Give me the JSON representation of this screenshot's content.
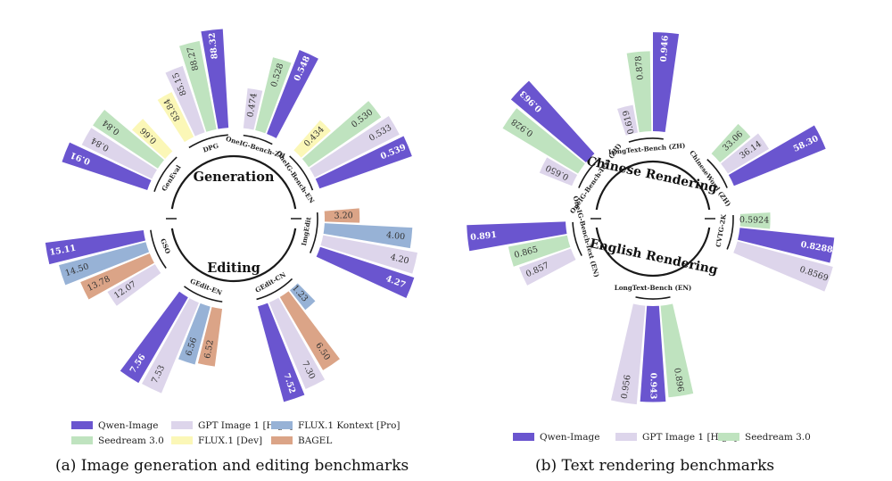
{
  "colors": {
    "Qwen-Image": "#6a55cf",
    "Seedream 3.0": "#bfe3bf",
    "GPT Image 1 [High]": "#ddd5eb",
    "FLUX.1 [Dev]": "#fbf7b7",
    "FLUX.1 Kontext [Pro]": "#97b2d6",
    "BAGEL": "#dba487",
    "frame": "#1a1a1a"
  },
  "captions": {
    "a": "(a) Image generation and editing benchmarks",
    "b": "(b) Text rendering benchmarks"
  },
  "chart_data": [
    {
      "type": "radial bar",
      "caption": "(a) Image generation and editing benchmarks",
      "hub_labels": [
        "Generation",
        "Editing"
      ],
      "legend": [
        "Qwen-Image",
        "GPT Image 1 [High]",
        "FLUX.1 Kontext [Pro]",
        "Seedream 3.0",
        "FLUX.1 [Dev]",
        "BAGEL"
      ],
      "benchmarks": [
        {
          "name": "GenEval",
          "group": "Generation",
          "bars": [
            {
              "series": "Qwen-Image",
              "value": "0.91"
            },
            {
              "series": "GPT Image 1 [High]",
              "value": "0.84"
            },
            {
              "series": "Seedream 3.0",
              "value": "0.84"
            },
            {
              "series": "FLUX.1 [Dev]",
              "value": "0.66"
            }
          ]
        },
        {
          "name": "DPG",
          "group": "Generation",
          "bars": [
            {
              "series": "FLUX.1 [Dev]",
              "value": "83.84"
            },
            {
              "series": "GPT Image 1 [High]",
              "value": "85.15"
            },
            {
              "series": "Seedream 3.0",
              "value": "88.27"
            },
            {
              "series": "Qwen-Image",
              "value": "88.32"
            }
          ]
        },
        {
          "name": "OneIG-Bench-ZH",
          "group": "Generation",
          "bars": [
            {
              "series": "GPT Image 1 [High]",
              "value": "0.474"
            },
            {
              "series": "Seedream 3.0",
              "value": "0.528"
            },
            {
              "series": "Qwen-Image",
              "value": "0.548"
            }
          ]
        },
        {
          "name": "OneIG-Bench-EN",
          "group": "Generation",
          "bars": [
            {
              "series": "FLUX.1 [Dev]",
              "value": "0.434"
            },
            {
              "series": "Seedream 3.0",
              "value": "0.530"
            },
            {
              "series": "GPT Image 1 [High]",
              "value": "0.533"
            },
            {
              "series": "Qwen-Image",
              "value": "0.539"
            }
          ]
        },
        {
          "name": "ImgEdit",
          "group": "Editing",
          "bars": [
            {
              "series": "BAGEL",
              "value": "3.20"
            },
            {
              "series": "FLUX.1 Kontext [Pro]",
              "value": "4.00"
            },
            {
              "series": "GPT Image 1 [High]",
              "value": "4.20"
            },
            {
              "series": "Qwen-Image",
              "value": "4.27"
            }
          ]
        },
        {
          "name": "GEdit-CN",
          "group": "Editing",
          "bars": [
            {
              "series": "FLUX.1 Kontext [Pro]",
              "value": "1.23"
            },
            {
              "series": "BAGEL",
              "value": "6.50"
            },
            {
              "series": "GPT Image 1 [High]",
              "value": "7.30"
            },
            {
              "series": "Qwen-Image",
              "value": "7.52"
            }
          ]
        },
        {
          "name": "GEdit-EN",
          "group": "Editing",
          "bars": [
            {
              "series": "BAGEL",
              "value": "6.52"
            },
            {
              "series": "FLUX.1 Kontext [Pro]",
              "value": "6.56"
            },
            {
              "series": "GPT Image 1 [High]",
              "value": "7.53"
            },
            {
              "series": "Qwen-Image",
              "value": "7.56"
            }
          ]
        },
        {
          "name": "GSO",
          "group": "Editing",
          "bars": [
            {
              "series": "GPT Image 1 [High]",
              "value": "12.07"
            },
            {
              "series": "BAGEL",
              "value": "13.78"
            },
            {
              "series": "FLUX.1 Kontext [Pro]",
              "value": "14.50"
            },
            {
              "series": "Qwen-Image",
              "value": "15.11"
            }
          ]
        }
      ]
    },
    {
      "type": "radial bar",
      "caption": "(b) Text rendering benchmarks",
      "hub_labels": [
        "Chinese Rendering",
        "English Rendering"
      ],
      "legend": [
        "Qwen-Image",
        "GPT Image 1 [High]",
        "Seedream 3.0"
      ],
      "benchmarks": [
        {
          "name": "OneIG-Bench-Text (ZH)",
          "group": "Chinese Rendering",
          "bars": [
            {
              "series": "GPT Image 1 [High]",
              "value": "0.650"
            },
            {
              "series": "Seedream 3.0",
              "value": "0.928"
            },
            {
              "series": "Qwen-Image",
              "value": "0.963"
            }
          ]
        },
        {
          "name": "LongText-Bench (ZH)",
          "group": "Chinese Rendering",
          "bars": [
            {
              "series": "GPT Image 1 [High]",
              "value": "0.619"
            },
            {
              "series": "Seedream 3.0",
              "value": "0.878"
            },
            {
              "series": "Qwen-Image",
              "value": "0.946"
            }
          ]
        },
        {
          "name": "ChineseWord (ZH)",
          "group": "Chinese Rendering",
          "bars": [
            {
              "series": "Seedream 3.0",
              "value": "33.06"
            },
            {
              "series": "GPT Image 1 [High]",
              "value": "36.14"
            },
            {
              "series": "Qwen-Image",
              "value": "58.30"
            }
          ]
        },
        {
          "name": "CVTG-2K",
          "group": "English Rendering",
          "bars": [
            {
              "series": "Seedream 3.0",
              "value": "0.5924"
            },
            {
              "series": "Qwen-Image",
              "value": "0.8288"
            },
            {
              "series": "GPT Image 1 [High]",
              "value": "0.8569"
            }
          ]
        },
        {
          "name": "LongText-Bench (EN)",
          "group": "English Rendering",
          "bars": [
            {
              "series": "Seedream 3.0",
              "value": "0.896"
            },
            {
              "series": "Qwen-Image",
              "value": "0.943"
            },
            {
              "series": "GPT Image 1 [High]",
              "value": "0.956"
            }
          ]
        },
        {
          "name": "OneIG-Bench-Text (EN)",
          "group": "English Rendering",
          "bars": [
            {
              "series": "GPT Image 1 [High]",
              "value": "0.857"
            },
            {
              "series": "Seedream 3.0",
              "value": "0.865"
            },
            {
              "series": "Qwen-Image",
              "value": "0.891"
            }
          ]
        }
      ]
    }
  ]
}
